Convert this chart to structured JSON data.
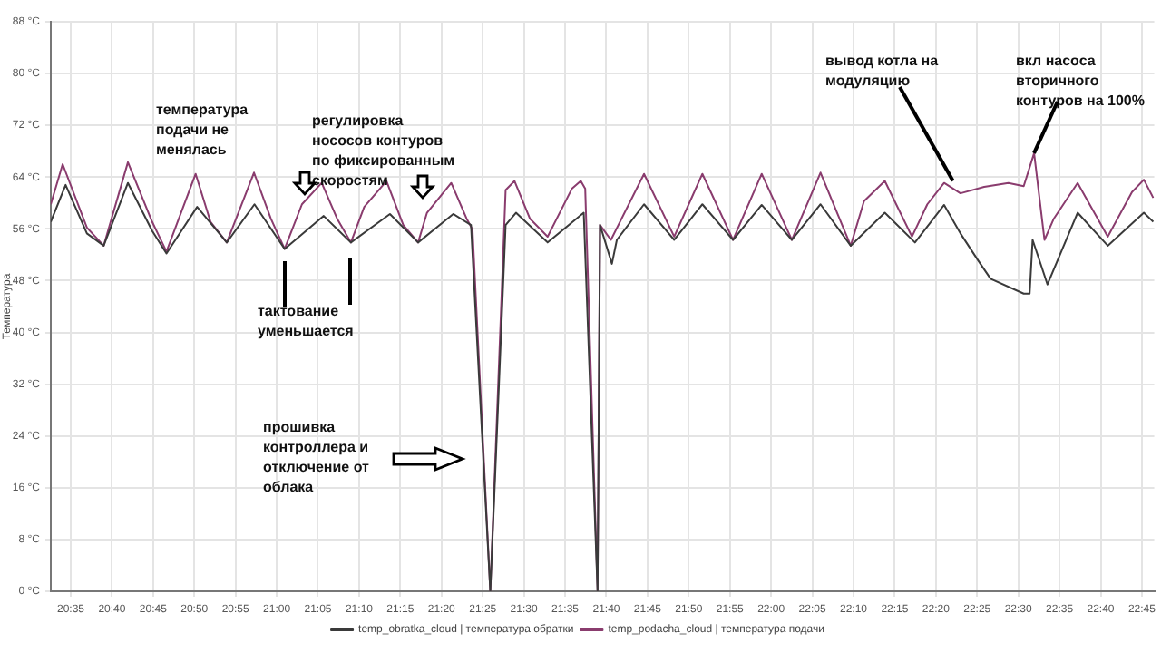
{
  "chart_data": {
    "type": "line",
    "ylabel": "Температура",
    "xlim": [
      20.543,
      22.775
    ],
    "ylim": [
      0,
      88
    ],
    "yticks": [
      {
        "value": 0,
        "label": "0 °C"
      },
      {
        "value": 8,
        "label": "8 °C"
      },
      {
        "value": 16,
        "label": "16 °C"
      },
      {
        "value": 24,
        "label": "24 °C"
      },
      {
        "value": 32,
        "label": "32 °C"
      },
      {
        "value": 40,
        "label": "40 °C"
      },
      {
        "value": 48,
        "label": "48 °C"
      },
      {
        "value": 56,
        "label": "56 °C"
      },
      {
        "value": 64,
        "label": "64 °C"
      },
      {
        "value": 72,
        "label": "72 °C"
      },
      {
        "value": 80,
        "label": "80 °C"
      },
      {
        "value": 88,
        "label": "88 °C"
      }
    ],
    "xticks": [
      {
        "value": 20.5833,
        "label": "20:35"
      },
      {
        "value": 20.6667,
        "label": "20:40"
      },
      {
        "value": 20.75,
        "label": "20:45"
      },
      {
        "value": 20.8333,
        "label": "20:50"
      },
      {
        "value": 20.9167,
        "label": "20:55"
      },
      {
        "value": 21,
        "label": "21:00"
      },
      {
        "value": 21.0833,
        "label": "21:05"
      },
      {
        "value": 21.1667,
        "label": "21:10"
      },
      {
        "value": 21.25,
        "label": "21:15"
      },
      {
        "value": 21.3333,
        "label": "21:20"
      },
      {
        "value": 21.4167,
        "label": "21:25"
      },
      {
        "value": 21.5,
        "label": "21:30"
      },
      {
        "value": 21.5833,
        "label": "21:35"
      },
      {
        "value": 21.6667,
        "label": "21:40"
      },
      {
        "value": 21.75,
        "label": "21:45"
      },
      {
        "value": 21.8333,
        "label": "21:50"
      },
      {
        "value": 21.9167,
        "label": "21:55"
      },
      {
        "value": 22,
        "label": "22:00"
      },
      {
        "value": 22.0833,
        "label": "22:05"
      },
      {
        "value": 22.1667,
        "label": "22:10"
      },
      {
        "value": 22.25,
        "label": "22:15"
      },
      {
        "value": 22.3333,
        "label": "22:20"
      },
      {
        "value": 22.4167,
        "label": "22:25"
      },
      {
        "value": 22.5,
        "label": "22:30"
      },
      {
        "value": 22.5833,
        "label": "22:35"
      },
      {
        "value": 22.6667,
        "label": "22:40"
      },
      {
        "value": 22.75,
        "label": "22:45"
      }
    ],
    "grid": true,
    "legend": "bottom",
    "marker": "none",
    "line_style": "solid",
    "series": [
      {
        "name": "temp_obratka_cloud | температура обратки",
        "color": "#3a3a3a",
        "x": [
          20.543,
          20.573,
          20.616,
          20.65,
          20.699,
          20.748,
          20.777,
          20.839,
          20.899,
          20.955,
          21.016,
          21.095,
          21.15,
          21.229,
          21.286,
          21.357,
          21.393,
          21.432,
          21.463,
          21.484,
          21.548,
          21.621,
          21.649,
          21.654,
          21.678,
          21.688,
          21.743,
          21.804,
          21.861,
          21.923,
          21.981,
          22.042,
          22.1,
          22.161,
          22.23,
          22.291,
          22.35,
          22.383,
          22.419,
          22.444,
          22.511,
          22.523,
          22.529,
          22.553,
          22.559,
          22.62,
          22.681,
          22.754,
          22.773
        ],
        "values": [
          57.1,
          62.8,
          55.3,
          53.4,
          63.1,
          55.7,
          52.2,
          59.4,
          53.9,
          59.8,
          52.9,
          58.0,
          53.9,
          58.3,
          53.9,
          58.3,
          56.6,
          0,
          56.6,
          58.5,
          53.9,
          58.5,
          0,
          56.6,
          50.6,
          54.3,
          59.8,
          54.3,
          59.8,
          54.3,
          59.7,
          54.3,
          59.8,
          53.4,
          58.5,
          53.9,
          59.7,
          55.3,
          51.1,
          48.3,
          46.0,
          46.0,
          54.3,
          48.8,
          47.4,
          58.5,
          53.4,
          58.5,
          57.1
        ]
      },
      {
        "name": "temp_podacha_cloud | температура подачи",
        "color": "#8a3c6e",
        "x": [
          20.543,
          20.567,
          20.616,
          20.65,
          20.699,
          20.748,
          20.777,
          20.836,
          20.866,
          20.899,
          20.954,
          20.988,
          21.016,
          21.051,
          21.091,
          21.122,
          21.15,
          21.177,
          21.222,
          21.256,
          21.286,
          21.304,
          21.353,
          21.384,
          21.396,
          21.432,
          21.463,
          21.481,
          21.512,
          21.548,
          21.597,
          21.615,
          21.624,
          21.649,
          21.654,
          21.676,
          21.743,
          21.804,
          21.861,
          21.923,
          21.981,
          22.042,
          22.1,
          22.161,
          22.188,
          22.23,
          22.285,
          22.316,
          22.35,
          22.383,
          22.431,
          22.48,
          22.511,
          22.532,
          22.553,
          22.572,
          22.62,
          22.681,
          22.73,
          22.754,
          22.773
        ],
        "values": [
          59.8,
          66.0,
          56.2,
          53.4,
          66.3,
          57.1,
          52.5,
          64.5,
          57.1,
          53.9,
          64.7,
          57.6,
          52.9,
          59.8,
          63.1,
          57.6,
          53.9,
          59.4,
          63.4,
          56.6,
          53.9,
          58.5,
          63.1,
          57.6,
          55.9,
          0,
          62.0,
          63.4,
          57.6,
          54.8,
          62.2,
          63.4,
          62.2,
          0,
          56.6,
          54.3,
          64.5,
          54.8,
          64.5,
          54.3,
          64.5,
          54.3,
          64.7,
          53.4,
          60.3,
          63.4,
          54.8,
          59.8,
          63.1,
          61.5,
          62.5,
          63.1,
          62.6,
          67.7,
          54.3,
          57.6,
          63.1,
          54.8,
          61.7,
          63.6,
          60.8
        ]
      }
    ],
    "annotations": [
      "температура\nподачи не\nменялась",
      "регулировка\nнососов контуров\nпо фиксированным\nскоростям",
      "тактование\nуменьшается",
      "прошивка\nконтроллера и\nотключение от\nоблака",
      {
        "text": "вывод котла на\nмодуляцию",
        "x": 22.368,
        "y": 63.4
      },
      {
        "text": "вкл насоса\nвторичного\nконтуров на 100%",
        "x": 22.532,
        "y": 67.7
      }
    ]
  }
}
